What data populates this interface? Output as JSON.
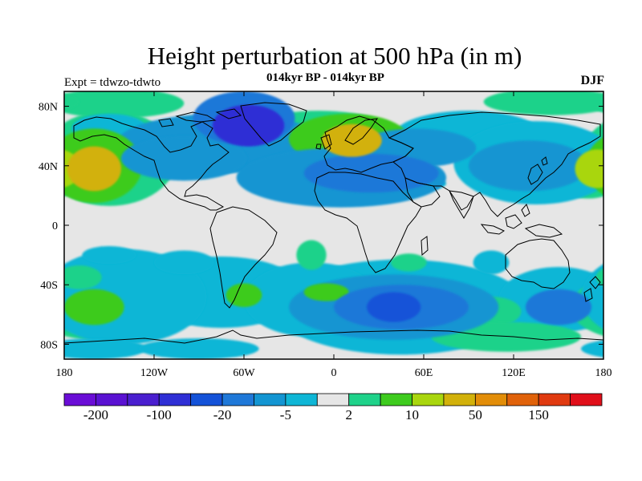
{
  "title": "Height perturbation at 500 hPa (in m)",
  "subtitle": "014kyr BP - 014kyr BP",
  "left_label": "Expt = tdwzo-tdwto",
  "right_label": "DJF",
  "chart_data": {
    "type": "heatmap",
    "projection": "cylindrical equidistant",
    "x_range": [
      -180,
      180
    ],
    "y_range": [
      -90,
      90
    ],
    "x_ticks": [
      {
        "value": -180,
        "label": "180"
      },
      {
        "value": -120,
        "label": "120W"
      },
      {
        "value": -60,
        "label": "60W"
      },
      {
        "value": 0,
        "label": "0"
      },
      {
        "value": 60,
        "label": "60E"
      },
      {
        "value": 120,
        "label": "120E"
      },
      {
        "value": 180,
        "label": "180"
      }
    ],
    "y_ticks": [
      {
        "value": 80,
        "label": "80N"
      },
      {
        "value": 40,
        "label": "40N"
      },
      {
        "value": 0,
        "label": "0"
      },
      {
        "value": -40,
        "label": "40S"
      },
      {
        "value": -80,
        "label": "80S"
      }
    ],
    "colorbar": {
      "colors": [
        "#6a0dd6",
        "#5a12d2",
        "#4a1fcf",
        "#2f2fd5",
        "#1452d8",
        "#1f78d8",
        "#1395d2",
        "#0fb6d6",
        "#e6e6e6",
        "#1fd28a",
        "#3ecb1e",
        "#a9d60e",
        "#d2b10a",
        "#e28d08",
        "#e0620a",
        "#e03a10",
        "#e00f1a"
      ],
      "tick_labels": [
        "-200",
        "-100",
        "-20",
        "-5",
        "2",
        "10",
        "50",
        "150"
      ]
    },
    "anomalies": [
      {
        "lon": -57,
        "lat": 67,
        "rx": 24,
        "ry": 14,
        "level": -5
      },
      {
        "lon": -60,
        "lat": 72,
        "rx": 34,
        "ry": 18,
        "level": -3
      },
      {
        "lon": -75,
        "lat": 55,
        "rx": 70,
        "ry": 20,
        "level": -2
      },
      {
        "lon": 12,
        "lat": 57,
        "rx": 20,
        "ry": 11,
        "level": 4
      },
      {
        "lon": 10,
        "lat": 58,
        "rx": 40,
        "ry": 17,
        "level": 2
      },
      {
        "lon": -10,
        "lat": 55,
        "rx": 60,
        "ry": 22,
        "level": 1
      },
      {
        "lon": -160,
        "lat": 38,
        "rx": 18,
        "ry": 15,
        "level": 4
      },
      {
        "lon": -160,
        "lat": 40,
        "rx": 32,
        "ry": 25,
        "level": 2
      },
      {
        "lon": -150,
        "lat": 45,
        "rx": 45,
        "ry": 32,
        "level": 1
      },
      {
        "lon": 176,
        "lat": 38,
        "rx": 15,
        "ry": 13,
        "level": 3
      },
      {
        "lon": 170,
        "lat": 40,
        "rx": 28,
        "ry": 22,
        "level": 1
      },
      {
        "lon": 25,
        "lat": 35,
        "rx": 45,
        "ry": 13,
        "level": -3
      },
      {
        "lon": 5,
        "lat": 32,
        "rx": 70,
        "ry": 20,
        "level": -2
      },
      {
        "lon": 55,
        "lat": 52,
        "rx": 40,
        "ry": 13,
        "level": -2
      },
      {
        "lon": 90,
        "lat": 62,
        "rx": 28,
        "ry": 12,
        "level": 1
      },
      {
        "lon": 90,
        "lat": 60,
        "rx": 50,
        "ry": 17,
        "level": -1
      },
      {
        "lon": 130,
        "lat": 40,
        "rx": 40,
        "ry": 17,
        "level": -2
      },
      {
        "lon": 135,
        "lat": 42,
        "rx": 55,
        "ry": 28,
        "level": -1
      },
      {
        "lon": -100,
        "lat": 45,
        "rx": 42,
        "ry": 15,
        "level": -2
      },
      {
        "lon": -145,
        "lat": 82,
        "rx": 45,
        "ry": 10,
        "level": 1
      },
      {
        "lon": 145,
        "lat": 83,
        "rx": 45,
        "ry": 9,
        "level": 1
      },
      {
        "lon": -150,
        "lat": 65,
        "rx": 25,
        "ry": 10,
        "level": -1
      },
      {
        "lon": 45,
        "lat": 28,
        "rx": 30,
        "ry": 6,
        "level": -1
      },
      {
        "lon": 40,
        "lat": -55,
        "rx": 18,
        "ry": 10,
        "level": -4
      },
      {
        "lon": 45,
        "lat": -55,
        "rx": 45,
        "ry": 15,
        "level": -3
      },
      {
        "lon": 40,
        "lat": -55,
        "rx": 70,
        "ry": 22,
        "level": -2
      },
      {
        "lon": 45,
        "lat": -55,
        "rx": 85,
        "ry": 32,
        "level": -1
      },
      {
        "lon": 150,
        "lat": -55,
        "rx": 22,
        "ry": 12,
        "level": -3
      },
      {
        "lon": 150,
        "lat": -50,
        "rx": 40,
        "ry": 22,
        "level": -1
      },
      {
        "lon": -60,
        "lat": -47,
        "rx": 12,
        "ry": 8,
        "level": 2
      },
      {
        "lon": -65,
        "lat": -45,
        "rx": 35,
        "ry": 15,
        "level": 1
      },
      {
        "lon": -75,
        "lat": -45,
        "rx": 55,
        "ry": 24,
        "level": -1
      },
      {
        "lon": -160,
        "lat": -55,
        "rx": 20,
        "ry": 12,
        "level": 2
      },
      {
        "lon": -160,
        "lat": -55,
        "rx": 42,
        "ry": 22,
        "level": 1
      },
      {
        "lon": -140,
        "lat": -48,
        "rx": 55,
        "ry": 32,
        "level": -1
      },
      {
        "lon": -5,
        "lat": -45,
        "rx": 15,
        "ry": 6,
        "level": 2
      },
      {
        "lon": -5,
        "lat": -42,
        "rx": 30,
        "ry": 12,
        "level": 1
      },
      {
        "lon": -15,
        "lat": -50,
        "rx": 45,
        "ry": 25,
        "level": -1
      },
      {
        "lon": 105,
        "lat": -58,
        "rx": 20,
        "ry": 10,
        "level": 1
      },
      {
        "lon": 115,
        "lat": -75,
        "rx": 50,
        "ry": 10,
        "level": 1
      },
      {
        "lon": -160,
        "lat": -83,
        "rx": 35,
        "ry": 7,
        "level": -1
      },
      {
        "lon": -90,
        "lat": -83,
        "rx": 40,
        "ry": 7,
        "level": -1
      },
      {
        "lon": 50,
        "lat": -25,
        "rx": 12,
        "ry": 6,
        "level": 1
      },
      {
        "lon": 105,
        "lat": -25,
        "rx": 12,
        "ry": 8,
        "level": -1
      },
      {
        "lon": -15,
        "lat": -20,
        "rx": 10,
        "ry": 10,
        "level": 1
      },
      {
        "lon": -150,
        "lat": -20,
        "rx": 18,
        "ry": 6,
        "level": -1
      },
      {
        "lon": -100,
        "lat": -25,
        "rx": 20,
        "ry": 8,
        "level": -1
      },
      {
        "lon": -170,
        "lat": -35,
        "rx": 15,
        "ry": 8,
        "level": 1
      }
    ]
  }
}
